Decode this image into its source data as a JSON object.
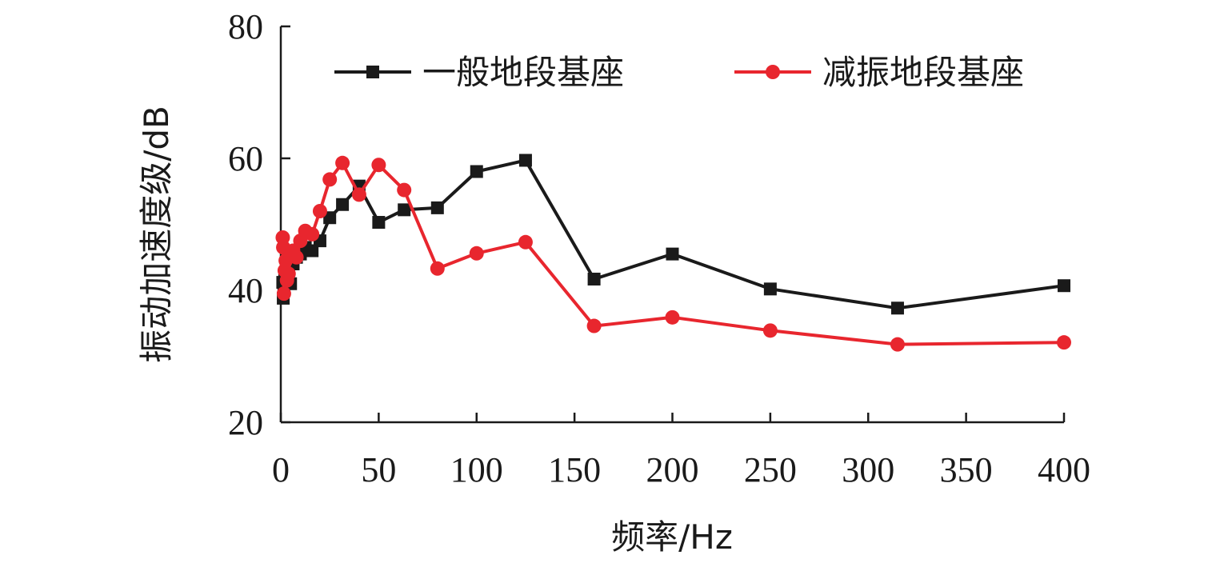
{
  "chart_data": {
    "type": "line",
    "title": "",
    "xlabel": "频率/Hz",
    "ylabel": "振动加速度级/dB",
    "xlim": [
      0,
      400
    ],
    "ylim": [
      20,
      80
    ],
    "x_ticks": [
      0,
      50,
      100,
      150,
      200,
      250,
      300,
      350,
      400
    ],
    "y_ticks": [
      20,
      40,
      60,
      80
    ],
    "x_tick_labels": [
      "0",
      "50",
      "100",
      "150",
      "200",
      "250",
      "300",
      "350",
      "400"
    ],
    "y_tick_labels": [
      "20",
      "40",
      "60",
      "80"
    ],
    "grid": false,
    "legend_position": "top",
    "series": [
      {
        "name": "一般地段基座",
        "color": "#1a1a1a",
        "marker": "square",
        "x": [
          1,
          1.25,
          1.6,
          2,
          2.5,
          3.15,
          4,
          5,
          6.3,
          8,
          10,
          12.5,
          16,
          20,
          25,
          31.5,
          40,
          50,
          63,
          80,
          100,
          125,
          160,
          200,
          250,
          315,
          400
        ],
        "y": [
          41.2,
          38.8,
          40.0,
          41.5,
          42.0,
          42.5,
          43.0,
          41.0,
          44.0,
          45.0,
          45.5,
          46.5,
          46.0,
          47.5,
          51.0,
          53.0,
          55.8,
          50.3,
          52.2,
          52.5,
          58.0,
          59.7,
          41.7,
          45.5,
          40.2,
          37.3,
          40.7
        ]
      },
      {
        "name": "减振地段基座",
        "color": "#e8262e",
        "marker": "circle",
        "x": [
          1,
          1.25,
          1.6,
          2,
          2.5,
          3.15,
          4,
          5,
          6.3,
          8,
          10,
          12.5,
          16,
          20,
          25,
          31.5,
          40,
          50,
          63,
          80,
          100,
          125,
          160,
          200,
          250,
          315,
          400
        ],
        "y": [
          48.0,
          46.5,
          39.5,
          43.0,
          44.5,
          41.5,
          42.5,
          45.5,
          46.0,
          45.0,
          47.5,
          49.0,
          48.5,
          52.0,
          56.8,
          59.3,
          54.5,
          59.0,
          55.2,
          43.3,
          45.6,
          47.3,
          34.6,
          35.9,
          33.9,
          31.8,
          32.1
        ]
      }
    ]
  }
}
